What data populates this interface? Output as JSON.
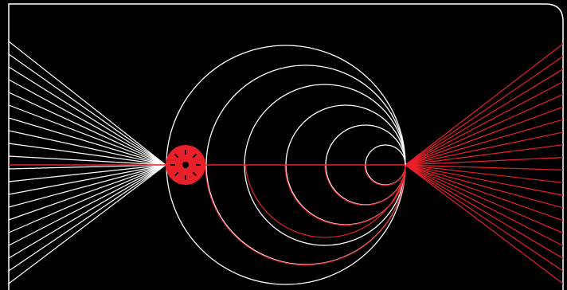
{
  "colors": {
    "background": "#000000",
    "line_primary": "#ffffff",
    "line_accent": "#e8202a",
    "dial_fill": "#e8202a",
    "dial_marks": "#000000"
  },
  "illustration": {
    "left_fan_line_count": 20,
    "right_fan_line_count": 20,
    "nested_circle_count": 6,
    "dial_tick_count": 8
  }
}
